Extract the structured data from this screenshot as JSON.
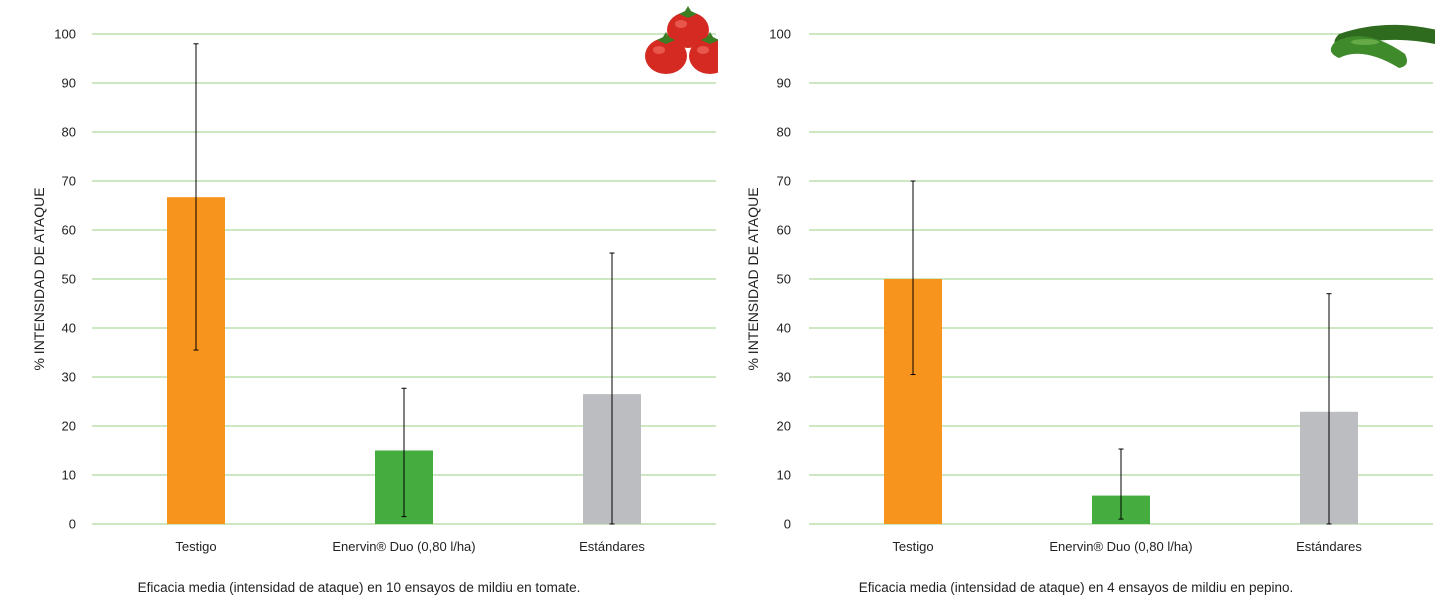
{
  "colors": {
    "grid": "#9bcf85",
    "testigo": "#f7941d",
    "enervin": "#45ad3f",
    "estandares": "#bcbdc1",
    "errorbar": "#000000"
  },
  "charts": [
    {
      "id": "left",
      "icon": "tomato-icon",
      "caption": "Eficacia media (intensidad de ataque) en 10 ensayos de mildiu en tomate."
    },
    {
      "id": "right",
      "icon": "cucumber-icon",
      "caption": "Eficacia media (intensidad de ataque) en 4 ensayos de mildiu en pepino."
    }
  ],
  "chart_data": [
    {
      "type": "bar",
      "title": "",
      "xlabel": "",
      "ylabel": "% INTENSIDAD DE ATAQUE",
      "ylim": [
        0,
        100
      ],
      "yticks": [
        "0",
        "10",
        "20",
        "30",
        "40",
        "50",
        "60",
        "70",
        "80",
        "90",
        "100"
      ],
      "grid": true,
      "categories": [
        "Testigo",
        "Enervin® Duo (0,80 l/ha)",
        "Estándares"
      ],
      "values": [
        66.7,
        15,
        26.5
      ],
      "error_low": [
        35.5,
        1.5,
        0
      ],
      "error_high": [
        98,
        27.7,
        55.3
      ],
      "bar_colors": [
        "#f7941d",
        "#45ad3f",
        "#bcbdc1"
      ]
    },
    {
      "type": "bar",
      "title": "",
      "xlabel": "",
      "ylabel": "% INTENSIDAD DE ATAQUE",
      "ylim": [
        0,
        100
      ],
      "yticks": [
        "0",
        "10",
        "20",
        "30",
        "40",
        "50",
        "60",
        "70",
        "80",
        "90",
        "100"
      ],
      "grid": true,
      "categories": [
        "Testigo",
        "Enervin® Duo (0,80 l/ha)",
        "Estándares"
      ],
      "values": [
        50,
        5.8,
        22.9
      ],
      "error_low": [
        30.5,
        1,
        0
      ],
      "error_high": [
        70,
        15.3,
        47
      ],
      "bar_colors": [
        "#f7941d",
        "#45ad3f",
        "#bcbdc1"
      ]
    }
  ]
}
